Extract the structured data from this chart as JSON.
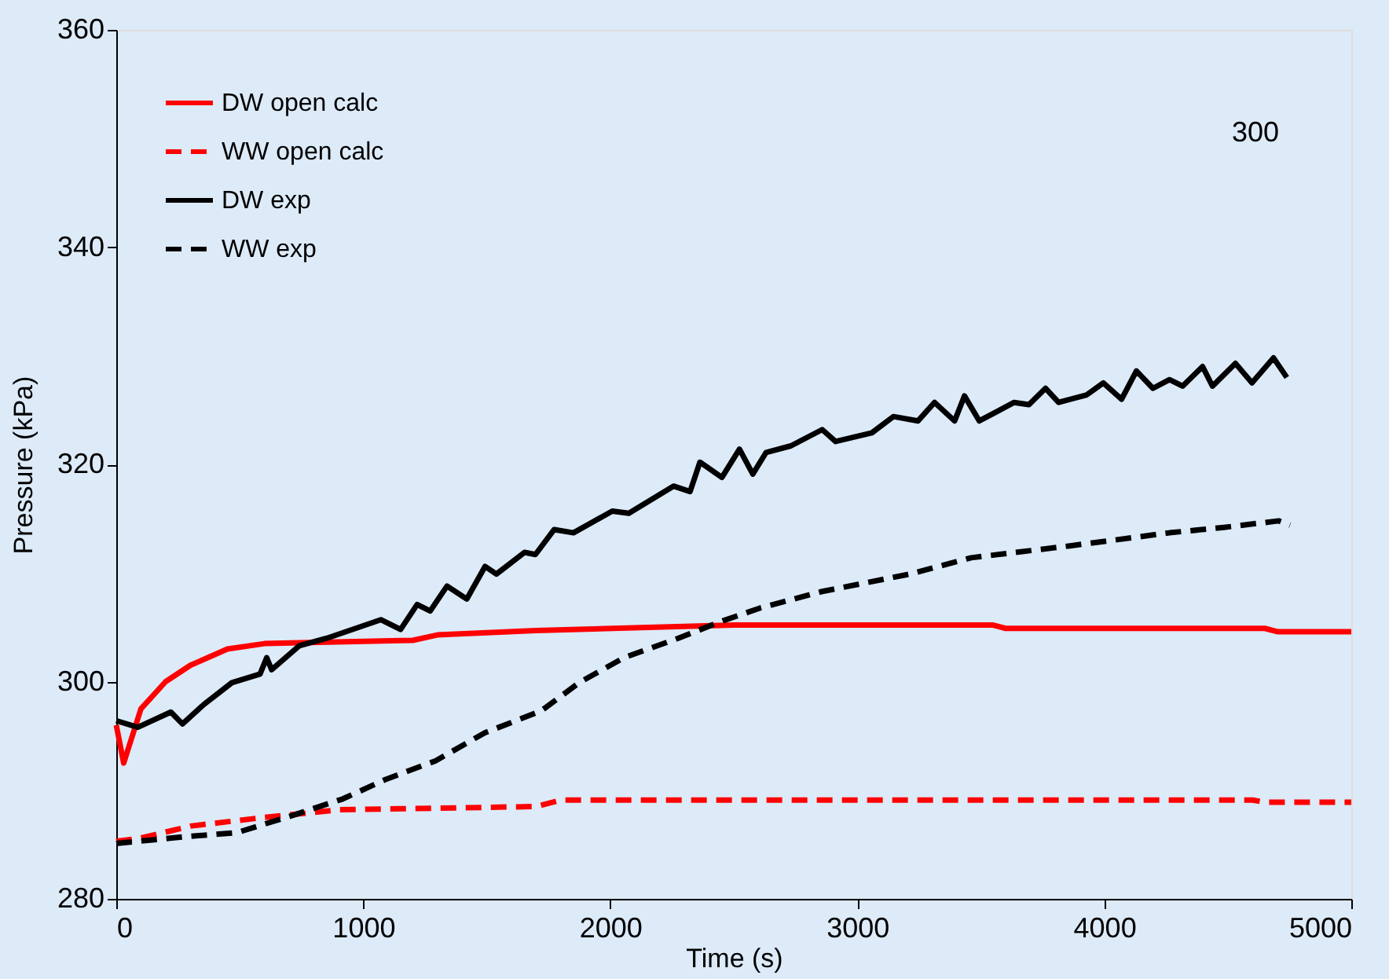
{
  "chart_data": {
    "type": "line",
    "xlabel": "Time (s)",
    "ylabel": "Pressure (kPa)",
    "xlim": [
      0,
      5000
    ],
    "ylim": [
      280,
      360
    ],
    "xticks": [
      0,
      1000,
      2000,
      3000,
      4000,
      5000
    ],
    "yticks": [
      280,
      300,
      320,
      340,
      360
    ],
    "grid": false,
    "legend": "top left",
    "marker": "none",
    "annotations": [
      "300"
    ],
    "series": [
      {
        "name": "DW open calc",
        "color": "#ff0000",
        "line_style": "solid",
        "x": [
          0,
          30,
          100,
          200,
          300,
          450,
          600,
          1200,
          1300,
          1700,
          2500,
          3550,
          3600,
          4650,
          4700,
          5000
        ],
        "values": [
          296,
          292.5,
          297.5,
          300,
          301.5,
          303,
          303.5,
          303.8,
          304.3,
          304.7,
          305.2,
          305.2,
          304.9,
          304.9,
          304.6,
          304.6
        ]
      },
      {
        "name": "WW open calc",
        "color": "#ff0000",
        "line_style": "dashed",
        "x": [
          0,
          100,
          300,
          600,
          900,
          1700,
          1800,
          4600,
          4650,
          5000
        ],
        "values": [
          285.3,
          285.6,
          286.7,
          287.5,
          288.2,
          288.5,
          289.1,
          289.1,
          288.9,
          288.9
        ]
      },
      {
        "name": "DW exp",
        "color": "#000000",
        "line_style": "solid",
        "x": [
          0,
          87,
          221,
          268,
          355,
          468,
          582,
          609,
          629,
          741,
          853,
          1071,
          1151,
          1218,
          1271,
          1339,
          1419,
          1493,
          1539,
          1653,
          1697,
          1773,
          1851,
          2008,
          2075,
          2256,
          2323,
          2363,
          2452,
          2523,
          2577,
          2631,
          2731,
          2858,
          2912,
          3059,
          3146,
          3246,
          3313,
          3394,
          3434,
          3494,
          3635,
          3695,
          3762,
          3815,
          3929,
          3996,
          4070,
          4130,
          4197,
          4264,
          4317,
          4398,
          4438,
          4531,
          4598,
          4685,
          4739
        ],
        "values": [
          296.4,
          295.8,
          297.2,
          296.1,
          297.9,
          299.9,
          300.7,
          302.2,
          301.1,
          303.3,
          304.0,
          305.7,
          304.8,
          307.1,
          306.5,
          308.8,
          307.6,
          310.6,
          309.9,
          311.9,
          311.7,
          314.0,
          313.7,
          315.7,
          315.5,
          318.0,
          317.5,
          320.2,
          318.8,
          321.4,
          319.1,
          321.1,
          321.7,
          323.2,
          322.1,
          322.9,
          324.4,
          324.0,
          325.7,
          324.0,
          326.3,
          324.0,
          325.7,
          325.5,
          327.0,
          325.7,
          326.4,
          327.5,
          326.0,
          328.6,
          327.0,
          327.8,
          327.2,
          329.0,
          327.2,
          329.3,
          327.5,
          329.8,
          328.0
        ]
      },
      {
        "name": "WW exp",
        "color": "#000000",
        "line_style": "dashed",
        "x": [
          0,
          268,
          489,
          716,
          917,
          1091,
          1292,
          1493,
          1720,
          1874,
          2055,
          2276,
          2456,
          2610,
          2858,
          3213,
          3461,
          3862,
          4264,
          4485,
          4706,
          4752
        ],
        "values": [
          285.1,
          285.7,
          286.1,
          287.7,
          289.2,
          291.0,
          292.7,
          295.3,
          297.3,
          299.9,
          302.2,
          304.0,
          305.6,
          306.8,
          308.3,
          309.9,
          311.4,
          312.5,
          313.7,
          314.2,
          314.8,
          314.4
        ]
      }
    ]
  }
}
